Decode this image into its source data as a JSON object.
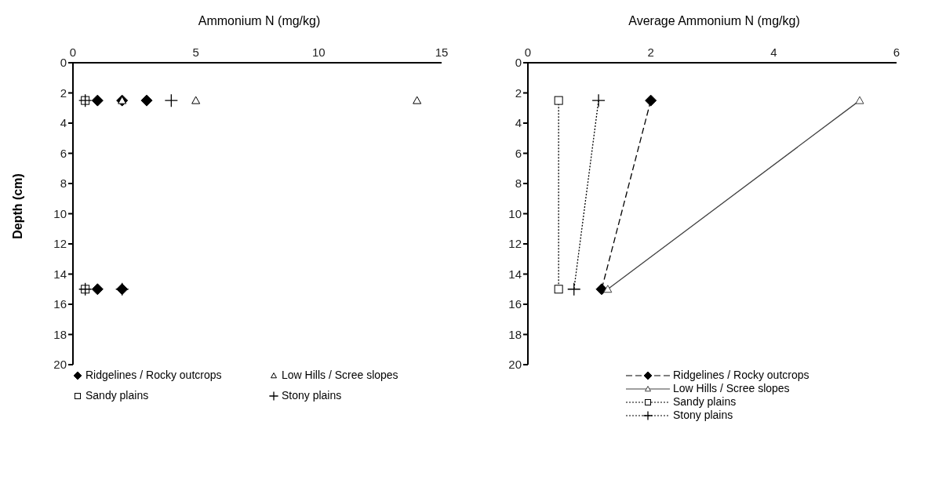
{
  "chart_data": [
    {
      "type": "scatter",
      "xlabel": "Ammonium N (mg/kg)",
      "ylabel": "Depth (cm)",
      "xlim": [
        0,
        15
      ],
      "xticks": [
        0,
        5,
        10,
        15
      ],
      "ylim": [
        20,
        0
      ],
      "yticks": [
        0,
        2,
        4,
        6,
        8,
        10,
        12,
        14,
        16,
        18,
        20
      ],
      "legend": "bottom",
      "series": [
        {
          "name": "Ridgelines / Rocky outcrops",
          "color": "#000000",
          "marker": "diamond",
          "x": [
            1,
            2,
            3,
            1,
            2
          ],
          "values": [
            2.5,
            2.5,
            2.5,
            15,
            15
          ]
        },
        {
          "name": "Low Hills / Scree slopes",
          "color": "#000000",
          "marker": "triangle",
          "x": [
            2,
            5,
            14
          ],
          "values": [
            2.5,
            2.5,
            2.5
          ]
        },
        {
          "name": "Sandy plains",
          "color": "#000000",
          "marker": "square",
          "x": [
            0.5,
            0.5
          ],
          "values": [
            2.5,
            15
          ]
        },
        {
          "name": "Stony plains",
          "color": "#000000",
          "marker": "cross",
          "x": [
            0.5,
            4,
            0.5,
            2
          ],
          "values": [
            2.5,
            2.5,
            15,
            15
          ]
        }
      ]
    },
    {
      "type": "line",
      "xlabel": "Average Ammonium N (mg/kg)",
      "xlim": [
        0,
        6
      ],
      "xticks": [
        0,
        2,
        4,
        6
      ],
      "ylim": [
        20,
        0
      ],
      "yticks": [
        0,
        2,
        4,
        6,
        8,
        10,
        12,
        14,
        16,
        18,
        20
      ],
      "legend": "bottom",
      "series": [
        {
          "name": "Ridgelines / Rocky outcrops",
          "color": "#000000",
          "marker": "diamond",
          "line_style": "dashed",
          "x": [
            2.0,
            1.2
          ],
          "values": [
            2.5,
            15
          ]
        },
        {
          "name": "Low Hills / Scree slopes",
          "color": "#404040",
          "marker": "triangle",
          "line_style": "solid",
          "x": [
            5.4,
            1.3
          ],
          "values": [
            2.5,
            15
          ]
        },
        {
          "name": "Sandy plains",
          "color": "#000000",
          "marker": "square",
          "line_style": "dotted",
          "x": [
            0.5,
            0.5
          ],
          "values": [
            2.5,
            15
          ]
        },
        {
          "name": "Stony plains",
          "color": "#000000",
          "marker": "cross",
          "line_style": "dotted",
          "x": [
            1.15,
            0.75
          ],
          "values": [
            2.5,
            15
          ]
        }
      ]
    }
  ]
}
